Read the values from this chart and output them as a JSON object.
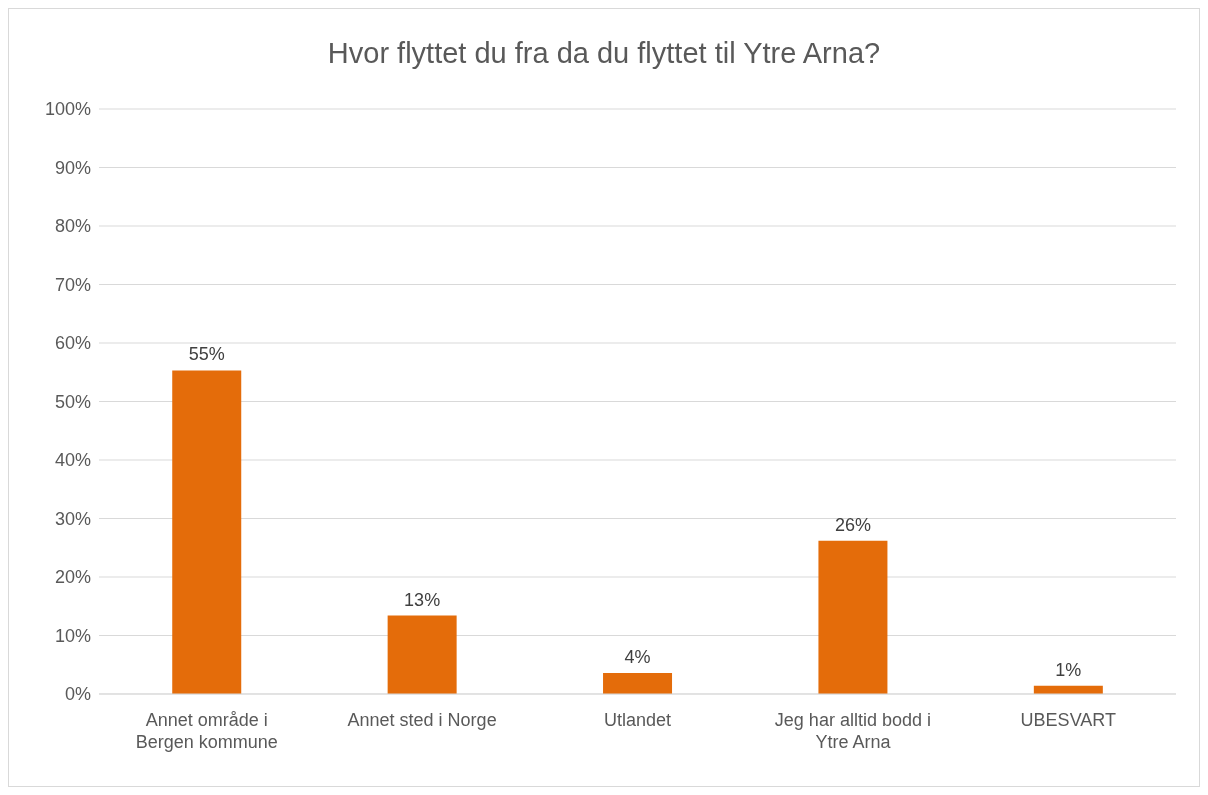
{
  "chart_data": {
    "type": "bar",
    "title": "Hvor flyttet du fra da du flyttet til Ytre Arna?",
    "categories": [
      "Annet område i Bergen kommune",
      "Annet sted i Norge",
      "Utlandet",
      "Jeg har alltid bodd i Ytre Arna",
      "UBESVART"
    ],
    "values": [
      55.3,
      13.4,
      3.6,
      26.2,
      1.4
    ],
    "value_labels": [
      "55%",
      "13%",
      "4%",
      "26%",
      "1%"
    ],
    "color": "#e46c0a",
    "ylim": [
      0,
      100
    ],
    "yticks": [
      {
        "value": 0,
        "label": "0%"
      },
      {
        "value": 10,
        "label": "10%"
      },
      {
        "value": 20,
        "label": "20%"
      },
      {
        "value": 30,
        "label": "30%"
      },
      {
        "value": 40,
        "label": "40%"
      },
      {
        "value": 50,
        "label": "50%"
      },
      {
        "value": 60,
        "label": "60%"
      },
      {
        "value": 70,
        "label": "70%"
      },
      {
        "value": 80,
        "label": "80%"
      },
      {
        "value": 90,
        "label": "90%"
      },
      {
        "value": 100,
        "label": "100%"
      }
    ],
    "grid": "y",
    "legend": false
  }
}
